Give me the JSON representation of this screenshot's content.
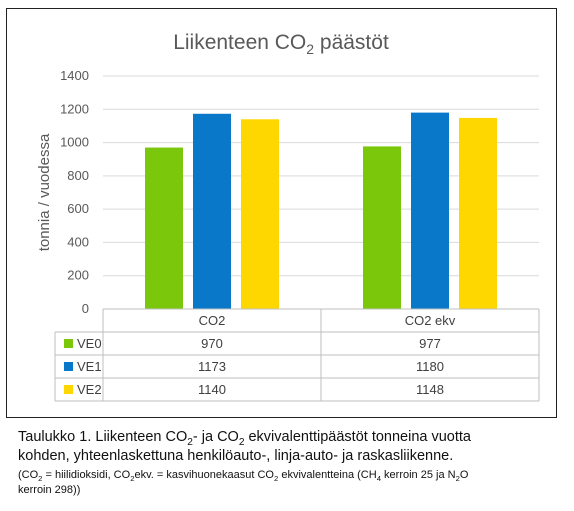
{
  "chart_data": {
    "type": "bar",
    "title_main": "Liikenteen CO",
    "title_sub": "2",
    "title_tail": " päästöt",
    "ylabel": "tonnia / vuodessa",
    "xlabel": "",
    "categories": [
      "CO2",
      "CO2 ekv"
    ],
    "ylim": [
      0,
      1400
    ],
    "yticks": [
      0,
      200,
      400,
      600,
      800,
      1000,
      1200,
      1400
    ],
    "grid": true,
    "legend": "data-table",
    "series": [
      {
        "name": "VE0",
        "color": "#7ac70c",
        "values": [
          970,
          977
        ]
      },
      {
        "name": "VE1",
        "color": "#0a78c8",
        "values": [
          1173,
          1180
        ]
      },
      {
        "name": "VE2",
        "color": "#ffd700",
        "values": [
          1140,
          1148
        ]
      }
    ]
  },
  "caption": {
    "line1_a": "Taulukko 1. Liikenteen CO",
    "line1_b": "2",
    "line1_c": "- ja CO",
    "line1_d": "2",
    "line1_e": " ekvivalenttipäästöt tonneina vuotta",
    "line2": "kohden, yhteenlaskettuna henkilöauto-, linja-auto- ja raskasliikenne.",
    "note_a": "(CO",
    "note_b": "2",
    "note_c": " = hiilidioksidi, CO",
    "note_d": "2",
    "note_e": "ekv. = kasvihuonekaasut CO",
    "note_f": "2",
    "note_g": " ekvivalentteina (CH",
    "note_h": "4",
    "note_i": " kerroin 25 ja N",
    "note_j": "2",
    "note_k": "O",
    "note_l": "kerroin 298))"
  }
}
